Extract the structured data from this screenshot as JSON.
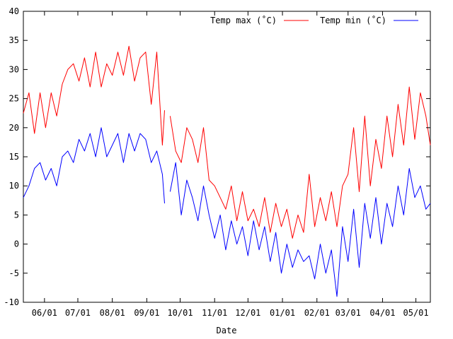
{
  "chart_data": {
    "type": "line",
    "title": "",
    "xlabel": "Date",
    "ylabel": "",
    "xlim": [
      "2010-05-13",
      "2011-05-14"
    ],
    "ylim": [
      -10,
      40
    ],
    "yticks": [
      -10,
      -5,
      0,
      5,
      10,
      15,
      20,
      25,
      30,
      35,
      40
    ],
    "xticks": [
      {
        "date": "2010-06-01",
        "label": "06/01"
      },
      {
        "date": "2010-07-01",
        "label": "07/01"
      },
      {
        "date": "2010-08-01",
        "label": "08/01"
      },
      {
        "date": "2010-09-01",
        "label": "09/01"
      },
      {
        "date": "2010-10-01",
        "label": "10/01"
      },
      {
        "date": "2010-11-01",
        "label": "11/01"
      },
      {
        "date": "2010-12-01",
        "label": "12/01"
      },
      {
        "date": "2011-01-01",
        "label": "01/01"
      },
      {
        "date": "2011-02-01",
        "label": "02/01"
      },
      {
        "date": "2011-03-01",
        "label": "03/01"
      },
      {
        "date": "2011-04-01",
        "label": "04/01"
      },
      {
        "date": "2011-05-01",
        "label": "05/01"
      }
    ],
    "grid": false,
    "legend_position": "top-right",
    "series": [
      {
        "name": "Temp max (˚C)",
        "color": "#ff0000",
        "x": [
          "2010-05-13",
          "2010-05-18",
          "2010-05-23",
          "2010-05-28",
          "2010-06-02",
          "2010-06-07",
          "2010-06-12",
          "2010-06-17",
          "2010-06-22",
          "2010-06-27",
          "2010-07-02",
          "2010-07-07",
          "2010-07-12",
          "2010-07-17",
          "2010-07-22",
          "2010-07-27",
          "2010-08-01",
          "2010-08-06",
          "2010-08-11",
          "2010-08-16",
          "2010-08-21",
          "2010-08-26",
          "2010-08-31",
          "2010-09-05",
          "2010-09-10",
          "2010-09-15",
          "2010-09-17",
          null,
          "2010-09-22",
          "2010-09-27",
          "2010-10-02",
          "2010-10-07",
          "2010-10-12",
          "2010-10-17",
          "2010-10-22",
          "2010-10-27",
          "2010-11-01",
          "2010-11-06",
          "2010-11-11",
          "2010-11-16",
          "2010-11-21",
          "2010-11-26",
          "2010-12-01",
          "2010-12-06",
          "2010-12-11",
          "2010-12-16",
          "2010-12-21",
          "2010-12-26",
          "2010-12-31",
          "2011-01-05",
          "2011-01-10",
          "2011-01-15",
          "2011-01-20",
          "2011-01-25",
          "2011-01-30",
          "2011-02-04",
          "2011-02-09",
          "2011-02-14",
          "2011-02-19",
          "2011-02-24",
          "2011-03-01",
          "2011-03-06",
          "2011-03-11",
          "2011-03-16",
          "2011-03-21",
          "2011-03-26",
          "2011-03-31",
          "2011-04-05",
          "2011-04-10",
          "2011-04-15",
          "2011-04-20",
          "2011-04-25",
          "2011-04-30",
          "2011-05-05",
          "2011-05-10",
          "2011-05-14"
        ],
        "y": [
          22.5,
          26,
          19,
          26,
          20,
          26,
          22,
          27.5,
          30,
          31,
          28,
          32,
          27,
          33,
          27,
          31,
          29,
          33,
          29,
          34,
          28,
          32,
          33,
          24,
          33,
          17,
          23,
          null,
          22,
          16,
          14,
          20,
          18,
          14,
          20,
          11,
          10,
          8,
          6,
          10,
          4,
          9,
          4,
          6,
          3,
          8,
          2,
          7,
          3,
          6,
          1,
          5,
          2,
          12,
          3,
          8,
          4,
          9,
          3,
          10,
          12,
          20,
          9,
          22,
          10,
          18,
          13,
          22,
          15,
          24,
          17,
          27,
          18,
          26,
          22,
          17
        ]
      },
      {
        "name": "Temp min (˚C)",
        "color": "#0000ff",
        "x": [
          "2010-05-13",
          "2010-05-18",
          "2010-05-23",
          "2010-05-28",
          "2010-06-02",
          "2010-06-07",
          "2010-06-12",
          "2010-06-17",
          "2010-06-22",
          "2010-06-27",
          "2010-07-02",
          "2010-07-07",
          "2010-07-12",
          "2010-07-17",
          "2010-07-22",
          "2010-07-27",
          "2010-08-01",
          "2010-08-06",
          "2010-08-11",
          "2010-08-16",
          "2010-08-21",
          "2010-08-26",
          "2010-08-31",
          "2010-09-05",
          "2010-09-10",
          "2010-09-15",
          "2010-09-17",
          null,
          "2010-09-22",
          "2010-09-27",
          "2010-10-02",
          "2010-10-07",
          "2010-10-12",
          "2010-10-17",
          "2010-10-22",
          "2010-10-27",
          "2010-11-01",
          "2010-11-06",
          "2010-11-11",
          "2010-11-16",
          "2010-11-21",
          "2010-11-26",
          "2010-12-01",
          "2010-12-06",
          "2010-12-11",
          "2010-12-16",
          "2010-12-21",
          "2010-12-26",
          "2010-12-31",
          "2011-01-05",
          "2011-01-10",
          "2011-01-15",
          "2011-01-20",
          "2011-01-25",
          "2011-01-30",
          "2011-02-04",
          "2011-02-09",
          "2011-02-14",
          "2011-02-19",
          "2011-02-24",
          "2011-03-01",
          "2011-03-06",
          "2011-03-11",
          "2011-03-16",
          "2011-03-21",
          "2011-03-26",
          "2011-03-31",
          "2011-04-05",
          "2011-04-10",
          "2011-04-15",
          "2011-04-20",
          "2011-04-25",
          "2011-04-30",
          "2011-05-05",
          "2011-05-10",
          "2011-05-14"
        ],
        "y": [
          8,
          10,
          13,
          14,
          11,
          13,
          10,
          15,
          16,
          14,
          18,
          16,
          19,
          15,
          20,
          15,
          17,
          19,
          14,
          19,
          16,
          19,
          18,
          14,
          16,
          12,
          7,
          null,
          9,
          14,
          5,
          11,
          8,
          4,
          10,
          5,
          1,
          5,
          -1,
          4,
          0,
          3,
          -2,
          4,
          -1,
          3,
          -3,
          2,
          -5,
          0,
          -4,
          -1,
          -3,
          -2,
          -6,
          0,
          -5,
          -1,
          -9,
          3,
          -3,
          6,
          -4,
          7,
          1,
          8,
          0,
          7,
          3,
          10,
          5,
          13,
          8,
          10,
          6,
          7
        ]
      }
    ]
  }
}
